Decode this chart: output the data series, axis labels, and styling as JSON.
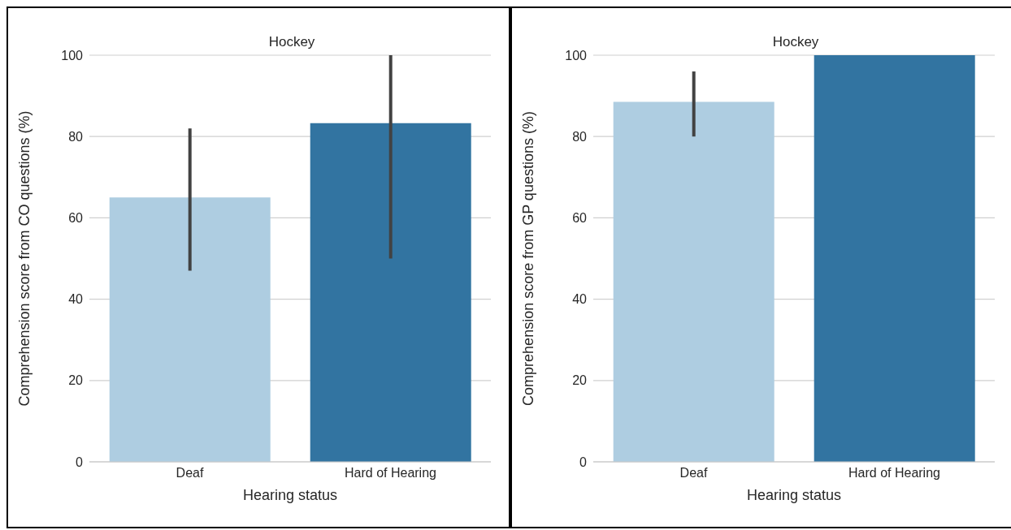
{
  "chart_data": [
    {
      "type": "bar",
      "title": "Hockey",
      "xlabel": "Hearing status",
      "ylabel": "Comprehension score from CO questions (%)",
      "categories": [
        "Deaf",
        "Hard of Hearing"
      ],
      "values": [
        65,
        83.3
      ],
      "colors": [
        "#aecde1",
        "#3274a1"
      ],
      "errors": [
        [
          47,
          82
        ],
        [
          50,
          100
        ]
      ],
      "ylim": [
        0,
        100
      ],
      "yticks": [
        0,
        20,
        40,
        60,
        80,
        100
      ],
      "grid": "y",
      "legend": false
    },
    {
      "type": "bar",
      "title": "Hockey",
      "xlabel": "Hearing status",
      "ylabel": "Comprehension score from GP questions (%)",
      "categories": [
        "Deaf",
        "Hard of Hearing"
      ],
      "values": [
        88.5,
        100
      ],
      "colors": [
        "#aecde1",
        "#3274a1"
      ],
      "errors": [
        [
          80,
          96
        ],
        null
      ],
      "ylim": [
        0,
        100
      ],
      "yticks": [
        0,
        20,
        40,
        60,
        80,
        100
      ],
      "grid": "y",
      "legend": false
    }
  ]
}
